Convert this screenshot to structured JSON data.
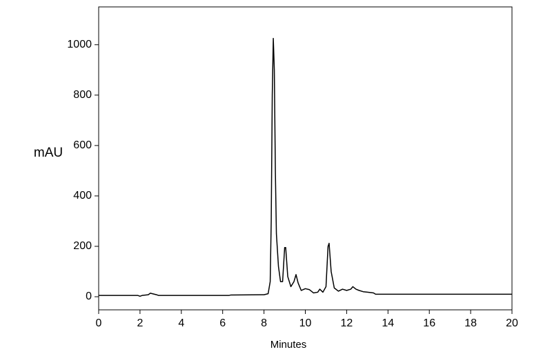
{
  "chart_data": {
    "type": "line",
    "x_label": "Minutes",
    "y_label": "mAU",
    "xlim": [
      0,
      20
    ],
    "ylim": [
      -52,
      1150
    ],
    "xticks": [
      0,
      2,
      4,
      6,
      8,
      10,
      12,
      14,
      16,
      18,
      20
    ],
    "yticks": [
      0,
      200,
      400,
      600,
      800,
      1000
    ],
    "series": [
      {
        "color": "#000000",
        "x": [
          0,
          1.9,
          2.0,
          2.1,
          2.4,
          2.5,
          2.6,
          2.8,
          2.9,
          3,
          6.3,
          6.4,
          8.0,
          8.2,
          8.3,
          8.35,
          8.4,
          8.45,
          8.5,
          8.55,
          8.6,
          8.7,
          8.8,
          8.9,
          9.0,
          9.05,
          9.15,
          9.3,
          9.45,
          9.55,
          9.65,
          9.8,
          10.0,
          10.2,
          10.4,
          10.6,
          10.7,
          10.85,
          11.0,
          11.1,
          11.15,
          11.25,
          11.4,
          11.6,
          11.8,
          12.0,
          12.2,
          12.3,
          12.45,
          12.6,
          12.8,
          13.0,
          13.3,
          13.4,
          15,
          20
        ],
        "values": [
          5,
          5,
          2,
          5,
          8,
          14,
          12,
          8,
          5,
          5,
          5,
          7,
          8,
          12,
          60,
          300,
          800,
          1025,
          900,
          500,
          250,
          120,
          60,
          60,
          195,
          195,
          80,
          40,
          60,
          88,
          55,
          25,
          32,
          28,
          15,
          18,
          30,
          18,
          40,
          200,
          212,
          100,
          35,
          22,
          30,
          25,
          30,
          40,
          30,
          25,
          20,
          18,
          15,
          10,
          10,
          10
        ]
      }
    ]
  }
}
